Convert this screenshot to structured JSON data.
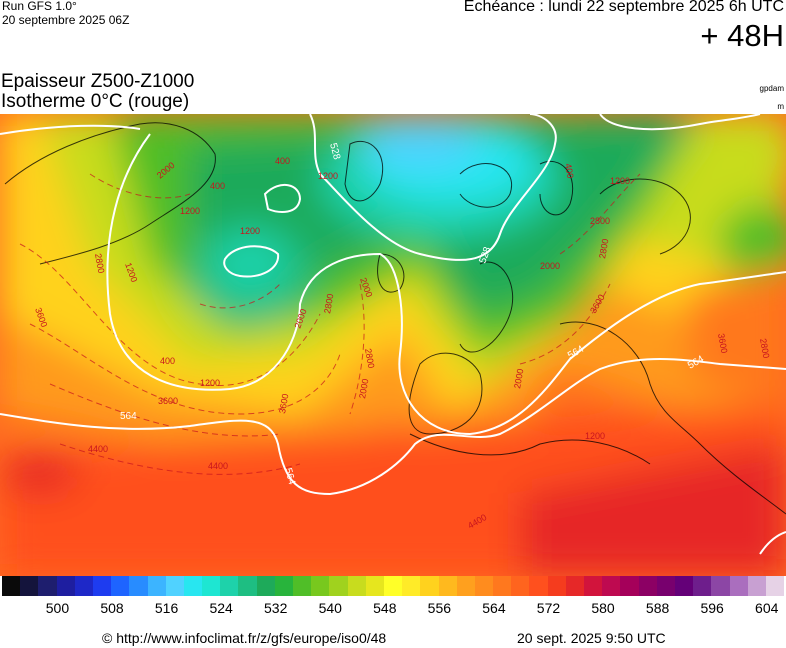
{
  "header": {
    "run_label": "Run GFS 1.0°",
    "run_date": "20 septembre 2025 06Z",
    "forecast_time": "Echéance : lundi 22 septembre 2025 6h UTC",
    "lead_time": "+ 48H"
  },
  "title": {
    "line1": "Epaisseur Z500-Z1000",
    "line2": "Isotherme 0°C (rouge)"
  },
  "units": {
    "thickness": "gpdam",
    "isotherm": "m"
  },
  "map": {
    "thickness_contours": [
      {
        "label": "528"
      },
      {
        "label": "564"
      }
    ],
    "isotherm_labels": [
      "400",
      "1200",
      "2000",
      "2800",
      "3600",
      "4400"
    ],
    "colors": {
      "contour_564": "#ffffff",
      "contour_528": "#ffffff",
      "isotherm": "#c8141e",
      "coastline": "#000000"
    }
  },
  "colorbar": {
    "labels": [
      "500",
      "508",
      "516",
      "524",
      "532",
      "540",
      "548",
      "556",
      "564",
      "572",
      "580",
      "588",
      "596",
      "604"
    ],
    "colors": [
      "#0a0a0a",
      "#14143c",
      "#1e1e6e",
      "#1e1ea0",
      "#1e28c8",
      "#1e3cf0",
      "#1e64ff",
      "#288cff",
      "#3cb4ff",
      "#50d2ff",
      "#28e6f0",
      "#1ee6d2",
      "#1ed2aa",
      "#1ebe82",
      "#1eaa5a",
      "#28b43c",
      "#50be28",
      "#78c81e",
      "#a0d21e",
      "#c8dc1e",
      "#e6e61e",
      "#ffff28",
      "#ffeb28",
      "#ffd21e",
      "#ffb91e",
      "#ffa01e",
      "#ff8c1e",
      "#ff781e",
      "#ff641e",
      "#ff501e",
      "#f53c1e",
      "#e62828",
      "#d2143c",
      "#be0a50",
      "#a5005a",
      "#8c0064",
      "#78006e",
      "#640078",
      "#6e1e8c",
      "#8c46a5",
      "#aa6ebe",
      "#c8a0d2",
      "#e6d2e6"
    ]
  },
  "footer": {
    "credit": "© http://www.infoclimat.fr/z/gfs/europe/iso0/48",
    "timestamp": "20 sept. 2025  9:50 UTC"
  }
}
